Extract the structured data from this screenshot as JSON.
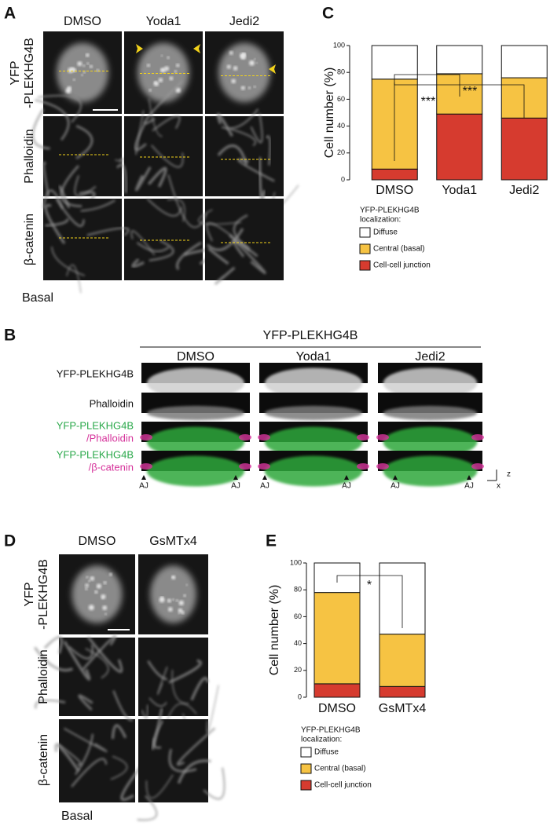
{
  "panel_a": {
    "label": "A",
    "columns": [
      "DMSO",
      "Yoda1",
      "Jedi2"
    ],
    "rows": [
      [
        "YFP",
        "-PLEKHG4B"
      ],
      [
        "Phalloidin"
      ],
      [
        "β-catenin"
      ]
    ],
    "footer": "Basal"
  },
  "panel_b": {
    "label": "B",
    "header": "YFP-PLEKHG4B",
    "columns": [
      "DMSO",
      "Yoda1",
      "Jedi2"
    ],
    "rows": [
      [
        "YFP-PLEKHG4B"
      ],
      [
        "Phalloidin"
      ],
      [
        "YFP-PLEKHG4B",
        "/Phalloidin"
      ],
      [
        "YFP-PLEKHG4B",
        "/β-catenin"
      ]
    ],
    "junction": "AJ",
    "axes": [
      "z",
      "x"
    ]
  },
  "panel_c": {
    "label": "C"
  },
  "panel_d": {
    "label": "D",
    "columns": [
      "DMSO",
      "GsMTx4"
    ],
    "rows": [
      [
        "YFP",
        "-PLEKHG4B"
      ],
      [
        "Phalloidin"
      ],
      [
        "β-catenin"
      ]
    ],
    "footer": "Basal"
  },
  "panel_e": {
    "label": "E"
  },
  "chart_data": [
    {
      "type": "stacked_bar",
      "y_label": "Cell number (%)",
      "categories": [
        "DMSO",
        "Yoda1",
        "Jedi2"
      ],
      "series": [
        {
          "name": "Cell-cell junction",
          "color": "#d63b2f",
          "values": [
            8,
            49,
            46
          ]
        },
        {
          "name": "Central (basal)",
          "color": "#f6c343",
          "values": [
            67,
            30,
            30
          ]
        },
        {
          "name": "Diffuse",
          "color": "#ffffff",
          "values": [
            25,
            21,
            24
          ]
        }
      ],
      "ylim": [
        0,
        100
      ],
      "yticks": [
        0,
        20,
        40,
        60,
        80,
        100
      ],
      "legend_title": [
        "YFP-PLEKHG4B",
        "localization:"
      ],
      "annotations": [
        "***",
        "***"
      ]
    },
    {
      "type": "stacked_bar",
      "y_label": "Cell number (%)",
      "categories": [
        "DMSO",
        "GsMTx4"
      ],
      "series": [
        {
          "name": "Cell-cell junction",
          "color": "#d63b2f",
          "values": [
            10,
            8
          ]
        },
        {
          "name": "Central (basal)",
          "color": "#f6c343",
          "values": [
            68,
            39
          ]
        },
        {
          "name": "Diffuse",
          "color": "#ffffff",
          "values": [
            22,
            53
          ]
        }
      ],
      "ylim": [
        0,
        100
      ],
      "yticks": [
        0,
        20,
        40,
        60,
        80,
        100
      ],
      "legend_title": [
        "YFP-PLEKHG4B",
        "localization:"
      ],
      "annotations": [
        "*"
      ]
    }
  ]
}
